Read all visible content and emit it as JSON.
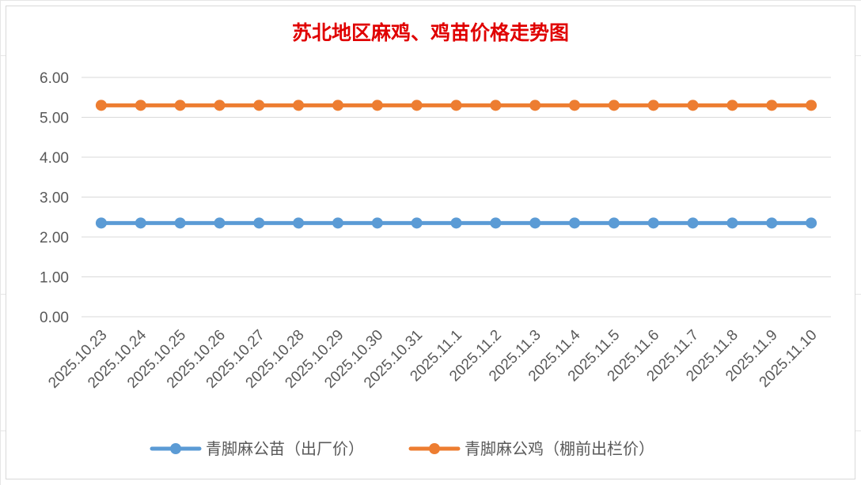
{
  "chart_data": {
    "type": "line",
    "title": "苏北地区麻鸡、鸡苗价格走势图",
    "xlabel": "",
    "ylabel": "",
    "ylim": [
      0,
      6
    ],
    "yticks": [
      "0.00",
      "1.00",
      "2.00",
      "3.00",
      "4.00",
      "5.00",
      "6.00"
    ],
    "categories": [
      "2025.10.23",
      "2025.10.24",
      "2025.10.25",
      "2025.10.26",
      "2025.10.27",
      "2025.10.28",
      "2025.10.29",
      "2025.10.30",
      "2025.10.31",
      "2025.11.1",
      "2025.11.2",
      "2025.11.3",
      "2025.11.4",
      "2025.11.5",
      "2025.11.6",
      "2025.11.7",
      "2025.11.8",
      "2025.11.9",
      "2025.11.10"
    ],
    "series": [
      {
        "name": "青脚麻公苗（出厂价）",
        "color": "#5b9bd5",
        "values": [
          2.35,
          2.35,
          2.35,
          2.35,
          2.35,
          2.35,
          2.35,
          2.35,
          2.35,
          2.35,
          2.35,
          2.35,
          2.35,
          2.35,
          2.35,
          2.35,
          2.35,
          2.35,
          2.35
        ]
      },
      {
        "name": "青脚麻公鸡（棚前出栏价）",
        "color": "#ed7d31",
        "values": [
          5.3,
          5.3,
          5.3,
          5.3,
          5.3,
          5.3,
          5.3,
          5.3,
          5.3,
          5.3,
          5.3,
          5.3,
          5.3,
          5.3,
          5.3,
          5.3,
          5.3,
          5.3,
          5.3
        ]
      }
    ],
    "grid": true,
    "legend": "bottom"
  }
}
